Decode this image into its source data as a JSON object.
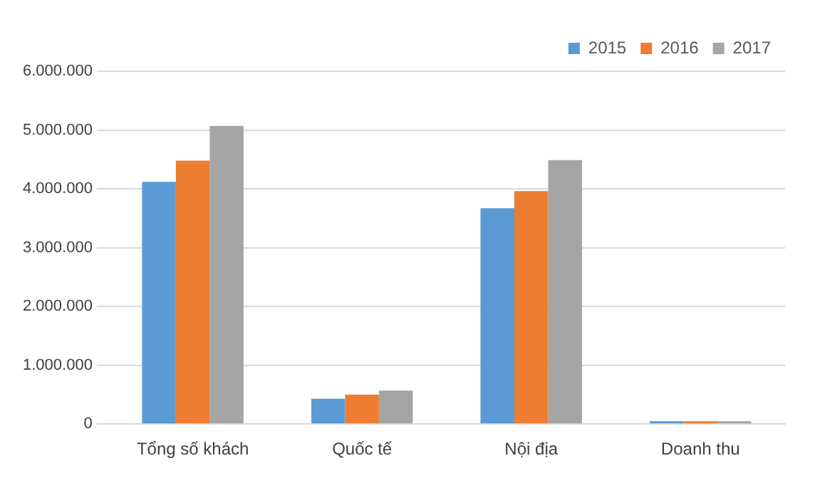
{
  "chart_data": {
    "type": "bar",
    "categories": [
      "Tổng số khách",
      "Quốc tế",
      "Nội địa",
      "Doanh thu"
    ],
    "series": [
      {
        "name": "2015",
        "color": "#5b9bd5",
        "values": [
          4120000,
          430000,
          3670000,
          0
        ]
      },
      {
        "name": "2016",
        "color": "#ed7d31",
        "values": [
          4480000,
          500000,
          3960000,
          0
        ]
      },
      {
        "name": "2017",
        "color": "#a5a5a5",
        "values": [
          5070000,
          570000,
          4490000,
          0
        ]
      }
    ],
    "ylim": [
      0,
      6000000
    ],
    "yticks": [
      {
        "value": 0,
        "label": "0"
      },
      {
        "value": 1000000,
        "label": "1.000.000"
      },
      {
        "value": 2000000,
        "label": "2.000.000"
      },
      {
        "value": 3000000,
        "label": "3.000.000"
      },
      {
        "value": 4000000,
        "label": "4.000.000"
      },
      {
        "value": 5000000,
        "label": "5.000.000"
      },
      {
        "value": 6000000,
        "label": "6.000.000"
      }
    ],
    "grid": "y",
    "legend": "top right"
  }
}
